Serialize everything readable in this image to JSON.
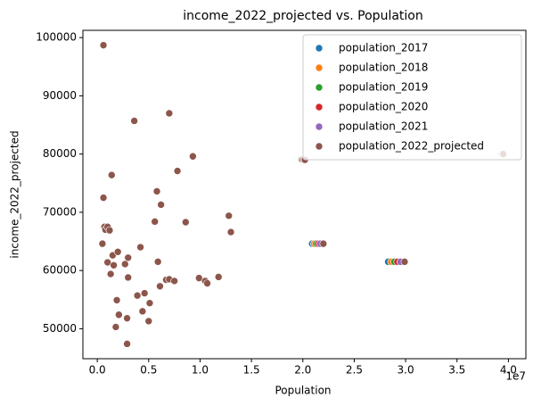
{
  "chart_data": {
    "type": "scatter",
    "title": "income_2022_projected vs. Population",
    "x_label": "Population",
    "y_label": "income_2022_projected",
    "x_offset_label": "1e7",
    "xlim": [
      -1400000,
      41700000
    ],
    "ylim": [
      44850,
      101250
    ],
    "xticks": [
      {
        "value": 0,
        "label": "0.0"
      },
      {
        "value": 5000000,
        "label": "0.5"
      },
      {
        "value": 10000000,
        "label": "1.0"
      },
      {
        "value": 15000000,
        "label": "1.5"
      },
      {
        "value": 20000000,
        "label": "2.0"
      },
      {
        "value": 25000000,
        "label": "2.5"
      },
      {
        "value": 30000000,
        "label": "3.0"
      },
      {
        "value": 35000000,
        "label": "3.5"
      },
      {
        "value": 40000000,
        "label": "4.0"
      }
    ],
    "yticks": [
      50000,
      60000,
      70000,
      80000,
      90000,
      100000
    ],
    "legend": "upper right",
    "series": [
      {
        "name": "population_2017",
        "color": "#1f77b4",
        "x": [
          600000,
          600000,
          500000,
          700000,
          800000,
          1000000,
          1200000,
          1000000,
          1300000,
          1400000,
          1500000,
          1600000,
          1800000,
          1900000,
          2000000,
          2100000,
          2700000,
          2900000,
          2900000,
          3000000,
          3000000,
          3600000,
          3900000,
          4200000,
          4400000,
          4600000,
          5000000,
          5100000,
          5600000,
          5800000,
          5900000,
          6100000,
          6200000,
          6700000,
          7000000,
          7000000,
          7500000,
          7800000,
          8600000,
          9300000,
          9900000,
          10500000,
          10700000,
          11800000,
          12800000,
          13000000,
          19800000,
          20900000,
          28300000,
          39300000
        ],
        "values": [
          98700,
          72500,
          64600,
          67500,
          67000,
          67500,
          66900,
          61400,
          59400,
          76400,
          62600,
          60900,
          50300,
          54900,
          63200,
          52400,
          61100,
          47400,
          51800,
          62200,
          58800,
          85700,
          55700,
          64000,
          53000,
          56100,
          51300,
          54400,
          68400,
          73600,
          61500,
          57300,
          71300,
          58400,
          87000,
          58500,
          58200,
          77100,
          68300,
          79600,
          58700,
          58200,
          57800,
          58900,
          69400,
          66600,
          79000,
          64600,
          61500,
          80000
        ]
      },
      {
        "name": "population_2018",
        "color": "#ff7f0e",
        "x": [
          600000,
          600000,
          500000,
          700000,
          800000,
          1000000,
          1200000,
          1000000,
          1300000,
          1400000,
          1500000,
          1600000,
          1800000,
          1900000,
          2000000,
          2100000,
          2700000,
          2900000,
          2900000,
          3000000,
          3000000,
          3600000,
          3900000,
          4200000,
          4400000,
          4600000,
          5000000,
          5100000,
          5600000,
          5800000,
          5900000,
          6100000,
          6200000,
          6700000,
          7000000,
          7000000,
          7500000,
          7800000,
          8600000,
          9300000,
          9900000,
          10500000,
          10700000,
          11800000,
          12800000,
          13000000,
          19850000,
          21100000,
          28600000,
          39400000
        ],
        "values": [
          98700,
          72500,
          64600,
          67500,
          67000,
          67500,
          66900,
          61400,
          59400,
          76400,
          62600,
          60900,
          50300,
          54900,
          63200,
          52400,
          61100,
          47400,
          51800,
          62200,
          58800,
          85700,
          55700,
          64000,
          53000,
          56100,
          51300,
          54400,
          68400,
          73600,
          61500,
          57300,
          71300,
          58400,
          87000,
          58500,
          58200,
          77100,
          68300,
          79600,
          58700,
          58200,
          57800,
          58900,
          69400,
          66600,
          79000,
          64600,
          61500,
          80000
        ]
      },
      {
        "name": "population_2019",
        "color": "#2ca02c",
        "x": [
          600000,
          600000,
          500000,
          700000,
          800000,
          1000000,
          1200000,
          1000000,
          1300000,
          1400000,
          1500000,
          1600000,
          1800000,
          1900000,
          2000000,
          2100000,
          2700000,
          2900000,
          2900000,
          3000000,
          3000000,
          3600000,
          3900000,
          4200000,
          4400000,
          4600000,
          5000000,
          5100000,
          5600000,
          5800000,
          5900000,
          6100000,
          6200000,
          6700000,
          7000000,
          7000000,
          7500000,
          7800000,
          8600000,
          9300000,
          9900000,
          10500000,
          10700000,
          11800000,
          12800000,
          13000000,
          19900000,
          21300000,
          28900000,
          39450000
        ],
        "values": [
          98700,
          72500,
          64600,
          67500,
          67000,
          67500,
          66900,
          61400,
          59400,
          76400,
          62600,
          60900,
          50300,
          54900,
          63200,
          52400,
          61100,
          47400,
          51800,
          62200,
          58800,
          85700,
          55700,
          64000,
          53000,
          56100,
          51300,
          54400,
          68400,
          73600,
          61500,
          57300,
          71300,
          58400,
          87000,
          58500,
          58200,
          77100,
          68300,
          79600,
          58700,
          58200,
          57800,
          58900,
          69400,
          66600,
          79000,
          64600,
          61500,
          80000
        ]
      },
      {
        "name": "population_2020",
        "color": "#d62728",
        "x": [
          600000,
          600000,
          500000,
          700000,
          800000,
          1000000,
          1200000,
          1000000,
          1300000,
          1400000,
          1500000,
          1600000,
          1800000,
          1900000,
          2000000,
          2100000,
          2700000,
          2900000,
          2900000,
          3000000,
          3000000,
          3600000,
          3900000,
          4200000,
          4400000,
          4600000,
          5000000,
          5100000,
          5600000,
          5800000,
          5900000,
          6100000,
          6200000,
          6700000,
          7000000,
          7000000,
          7500000,
          7800000,
          8600000,
          9300000,
          9900000,
          10500000,
          10700000,
          11800000,
          12800000,
          13000000,
          20000000,
          21500000,
          29200000,
          39500000
        ],
        "values": [
          98700,
          72500,
          64600,
          67500,
          67000,
          67500,
          66900,
          61400,
          59400,
          76400,
          62600,
          60900,
          50300,
          54900,
          63200,
          52400,
          61100,
          47400,
          51800,
          62200,
          58800,
          85700,
          55700,
          64000,
          53000,
          56100,
          51300,
          54400,
          68400,
          73600,
          61500,
          57300,
          71300,
          58400,
          87000,
          58500,
          58200,
          77100,
          68300,
          79600,
          58700,
          58200,
          57800,
          58900,
          69400,
          66600,
          79000,
          64600,
          61500,
          80000
        ]
      },
      {
        "name": "population_2021",
        "color": "#9467bd",
        "x": [
          600000,
          600000,
          500000,
          700000,
          800000,
          1000000,
          1200000,
          1000000,
          1300000,
          1400000,
          1500000,
          1600000,
          1800000,
          1900000,
          2000000,
          2100000,
          2700000,
          2900000,
          2900000,
          3000000,
          3000000,
          3600000,
          3900000,
          4200000,
          4400000,
          4600000,
          5000000,
          5100000,
          5600000,
          5800000,
          5900000,
          6100000,
          6200000,
          6700000,
          7000000,
          7000000,
          7500000,
          7800000,
          8600000,
          9300000,
          9900000,
          10500000,
          10700000,
          11800000,
          12800000,
          13000000,
          20100000,
          21700000,
          29500000,
          39450000
        ],
        "values": [
          98700,
          72500,
          64600,
          67500,
          67000,
          67500,
          66900,
          61400,
          59400,
          76400,
          62600,
          60900,
          50300,
          54900,
          63200,
          52400,
          61100,
          47400,
          51800,
          62200,
          58800,
          85700,
          55700,
          64000,
          53000,
          56100,
          51300,
          54400,
          68400,
          73600,
          61500,
          57300,
          71300,
          58400,
          87000,
          58500,
          58200,
          77100,
          68300,
          79600,
          58700,
          58200,
          57800,
          58900,
          69400,
          66600,
          79000,
          64600,
          61500,
          80000
        ]
      },
      {
        "name": "population_2022_projected",
        "color": "#8c564b",
        "x": [
          600000,
          600000,
          500000,
          700000,
          800000,
          1000000,
          1200000,
          1000000,
          1300000,
          1400000,
          1500000,
          1600000,
          1800000,
          1900000,
          2000000,
          2100000,
          2700000,
          2900000,
          2900000,
          3000000,
          3000000,
          3600000,
          3900000,
          4200000,
          4400000,
          4600000,
          5000000,
          5100000,
          5600000,
          5800000,
          5900000,
          6100000,
          6200000,
          6700000,
          7000000,
          7000000,
          7500000,
          7800000,
          8600000,
          9300000,
          9900000,
          10500000,
          10700000,
          11800000,
          12800000,
          13000000,
          20200000,
          22000000,
          29900000,
          39500000
        ],
        "values": [
          98700,
          72500,
          64600,
          67500,
          67000,
          67500,
          66900,
          61400,
          59400,
          76400,
          62600,
          60900,
          50300,
          54900,
          63200,
          52400,
          61100,
          47400,
          51800,
          62200,
          58800,
          85700,
          55700,
          64000,
          53000,
          56100,
          51300,
          54400,
          68400,
          73600,
          61500,
          57300,
          71300,
          58400,
          87000,
          58500,
          58200,
          77100,
          68300,
          79600,
          58700,
          58200,
          57800,
          58900,
          69400,
          66600,
          79000,
          64600,
          61500,
          80000
        ]
      }
    ]
  }
}
